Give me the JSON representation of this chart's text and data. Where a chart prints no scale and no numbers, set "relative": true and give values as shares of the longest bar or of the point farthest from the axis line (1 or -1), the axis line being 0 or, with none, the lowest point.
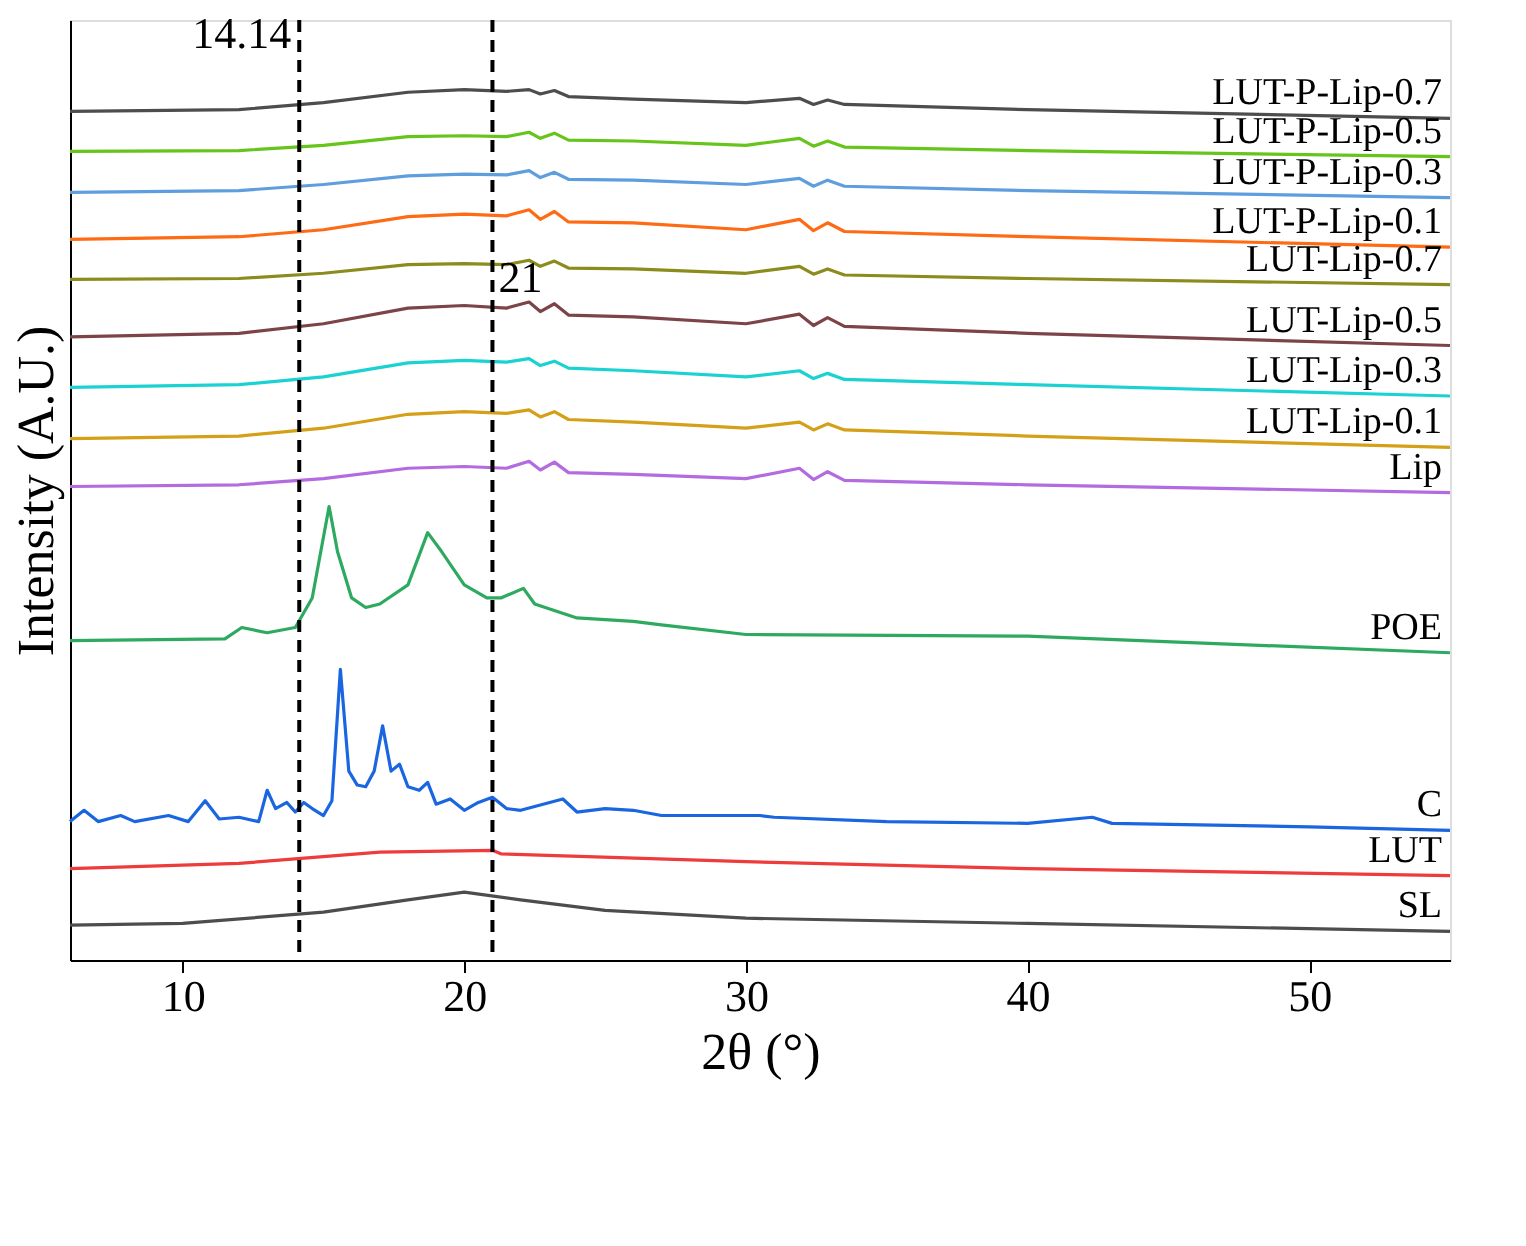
{
  "chart_data": {
    "type": "line",
    "relative": true,
    "xlabel": "2θ (°)",
    "ylabel": "Intensity (A.U.)",
    "xlim": [
      6,
      55
    ],
    "xticks": [
      10,
      20,
      30,
      40,
      50
    ],
    "grid": false,
    "line_style": "solid",
    "marker": "none",
    "ref_lines": [
      {
        "axis": "x",
        "value": 14.14,
        "label": "14.14",
        "line_style": "dashed",
        "color": "#000000"
      },
      {
        "axis": "x",
        "value": 21,
        "label": "21",
        "line_style": "dashed",
        "color": "#000000"
      }
    ],
    "series": [
      {
        "name": "LUT-P-Lip-0.7",
        "color": "#4d4d4d",
        "x": [
          6,
          12,
          15,
          18,
          20,
          21.5,
          22.3,
          22.7,
          23.2,
          23.7,
          26,
          30,
          31.9,
          32.4,
          32.9,
          33.5,
          40,
          55
        ],
        "values": [
          0.975,
          0.977,
          0.985,
          0.997,
          1.0,
          0.998,
          1.0,
          0.995,
          0.999,
          0.992,
          0.989,
          0.985,
          0.99,
          0.983,
          0.988,
          0.983,
          0.977,
          0.967
        ]
      },
      {
        "name": "LUT-P-Lip-0.5",
        "color": "#66c41a",
        "x": [
          6,
          12,
          15,
          18,
          20,
          21.5,
          22.3,
          22.7,
          23.2,
          23.7,
          26,
          30,
          31.9,
          32.4,
          32.9,
          33.5,
          40,
          55
        ],
        "values": [
          0.929,
          0.93,
          0.936,
          0.946,
          0.947,
          0.946,
          0.951,
          0.944,
          0.95,
          0.942,
          0.941,
          0.936,
          0.944,
          0.935,
          0.941,
          0.934,
          0.93,
          0.923
        ]
      },
      {
        "name": "LUT-P-Lip-0.3",
        "color": "#5f9ede",
        "x": [
          6,
          12,
          15,
          18,
          20,
          21.5,
          22.3,
          22.7,
          23.2,
          23.7,
          26,
          30,
          31.9,
          32.4,
          32.9,
          33.5,
          40,
          55
        ],
        "values": [
          0.882,
          0.884,
          0.891,
          0.901,
          0.903,
          0.902,
          0.907,
          0.899,
          0.905,
          0.897,
          0.896,
          0.891,
          0.898,
          0.889,
          0.896,
          0.889,
          0.884,
          0.876
        ]
      },
      {
        "name": "LUT-P-Lip-0.1",
        "color": "#ff6a14",
        "x": [
          6,
          12,
          15,
          18,
          20,
          21.5,
          22.3,
          22.7,
          23.2,
          23.7,
          26,
          30,
          31.9,
          32.4,
          32.9,
          33.5,
          40,
          55
        ],
        "values": [
          0.828,
          0.831,
          0.839,
          0.854,
          0.857,
          0.855,
          0.862,
          0.851,
          0.86,
          0.848,
          0.847,
          0.839,
          0.851,
          0.838,
          0.847,
          0.837,
          0.831,
          0.819
        ]
      },
      {
        "name": "LUT-Lip-0.7",
        "color": "#8c8c1e",
        "x": [
          6,
          12,
          15,
          18,
          20,
          21.5,
          22.3,
          22.7,
          23.2,
          23.7,
          26,
          30,
          31.9,
          32.4,
          32.9,
          33.5,
          40,
          55
        ],
        "values": [
          0.782,
          0.783,
          0.789,
          0.799,
          0.8,
          0.799,
          0.804,
          0.797,
          0.803,
          0.795,
          0.794,
          0.789,
          0.797,
          0.788,
          0.794,
          0.787,
          0.783,
          0.776
        ]
      },
      {
        "name": "LUT-Lip-0.5",
        "color": "#7d4448",
        "x": [
          6,
          12,
          15,
          18,
          20,
          21.5,
          22.3,
          22.7,
          23.2,
          23.7,
          26,
          30,
          31.9,
          32.4,
          32.9,
          33.5,
          40,
          55
        ],
        "values": [
          0.716,
          0.72,
          0.731,
          0.749,
          0.752,
          0.749,
          0.756,
          0.745,
          0.754,
          0.741,
          0.739,
          0.731,
          0.742,
          0.729,
          0.738,
          0.728,
          0.72,
          0.706
        ]
      },
      {
        "name": "LUT-Lip-0.3",
        "color": "#1ad2d2",
        "x": [
          6,
          12,
          15,
          18,
          20,
          21.5,
          22.3,
          22.7,
          23.2,
          23.7,
          26,
          30,
          31.9,
          32.4,
          32.9,
          33.5,
          40,
          55
        ],
        "values": [
          0.658,
          0.661,
          0.67,
          0.686,
          0.689,
          0.687,
          0.691,
          0.683,
          0.688,
          0.68,
          0.677,
          0.67,
          0.677,
          0.668,
          0.674,
          0.667,
          0.661,
          0.648
        ]
      },
      {
        "name": "LUT-Lip-0.1",
        "color": "#d4a017",
        "x": [
          6,
          12,
          15,
          18,
          20,
          21.5,
          22.3,
          22.7,
          23.2,
          23.7,
          26,
          30,
          31.9,
          32.4,
          32.9,
          33.5,
          40,
          55
        ],
        "values": [
          0.599,
          0.602,
          0.611,
          0.627,
          0.63,
          0.628,
          0.632,
          0.624,
          0.63,
          0.621,
          0.618,
          0.611,
          0.618,
          0.609,
          0.616,
          0.609,
          0.602,
          0.589
        ]
      },
      {
        "name": "Lip",
        "color": "#b36be0",
        "x": [
          6,
          12,
          15,
          18,
          20,
          21.5,
          22.3,
          22.7,
          23.2,
          23.7,
          26,
          30,
          31.9,
          32.4,
          32.9,
          33.5,
          40,
          55
        ],
        "values": [
          0.544,
          0.546,
          0.553,
          0.565,
          0.567,
          0.565,
          0.573,
          0.563,
          0.572,
          0.56,
          0.558,
          0.553,
          0.565,
          0.552,
          0.561,
          0.551,
          0.546,
          0.537
        ]
      },
      {
        "name": "POE",
        "color": "#2eaa60",
        "x": [
          6,
          11.5,
          12.1,
          13,
          14,
          14.6,
          15.2,
          15.5,
          16,
          16.5,
          17,
          18,
          18.7,
          19.2,
          20,
          20.8,
          21.3,
          22.1,
          22.5,
          24,
          26,
          27,
          30,
          40,
          55
        ],
        "values": [
          0.367,
          0.369,
          0.382,
          0.376,
          0.382,
          0.416,
          0.521,
          0.469,
          0.416,
          0.405,
          0.409,
          0.431,
          0.491,
          0.469,
          0.431,
          0.416,
          0.416,
          0.427,
          0.409,
          0.393,
          0.389,
          0.385,
          0.374,
          0.372,
          0.353
        ]
      },
      {
        "name": "C",
        "color": "#1a66e0",
        "x": [
          6,
          6.5,
          7,
          7.8,
          8.3,
          9.5,
          10.2,
          10.8,
          11.3,
          12,
          12.7,
          13,
          13.3,
          13.7,
          14,
          14.3,
          14.6,
          15,
          15.3,
          15.6,
          15.9,
          16.2,
          16.5,
          16.8,
          17.1,
          17.4,
          17.7,
          18,
          18.4,
          18.7,
          19,
          19.5,
          20,
          20.5,
          21,
          21.5,
          22,
          23.5,
          24,
          25,
          26,
          27,
          30.5,
          31,
          35,
          40,
          42.3,
          43,
          50,
          55
        ],
        "values": [
          0.159,
          0.172,
          0.159,
          0.166,
          0.159,
          0.166,
          0.159,
          0.183,
          0.162,
          0.164,
          0.159,
          0.195,
          0.174,
          0.181,
          0.17,
          0.181,
          0.174,
          0.166,
          0.183,
          0.334,
          0.217,
          0.201,
          0.199,
          0.217,
          0.269,
          0.217,
          0.225,
          0.199,
          0.195,
          0.204,
          0.179,
          0.185,
          0.172,
          0.181,
          0.187,
          0.174,
          0.172,
          0.185,
          0.17,
          0.174,
          0.172,
          0.166,
          0.166,
          0.164,
          0.159,
          0.157,
          0.164,
          0.157,
          0.153,
          0.149
        ]
      },
      {
        "name": "LUT",
        "color": "#ee3b3b",
        "x": [
          6,
          12,
          17,
          21,
          21.3,
          30,
          40,
          55
        ],
        "values": [
          0.105,
          0.111,
          0.124,
          0.126,
          0.122,
          0.113,
          0.105,
          0.097
        ]
      },
      {
        "name": "SL",
        "color": "#4d4d4d",
        "x": [
          6,
          10,
          15,
          18,
          20,
          22,
          25,
          30,
          40,
          55
        ],
        "values": [
          0.04,
          0.042,
          0.055,
          0.069,
          0.078,
          0.069,
          0.057,
          0.048,
          0.042,
          0.033
        ]
      }
    ]
  }
}
